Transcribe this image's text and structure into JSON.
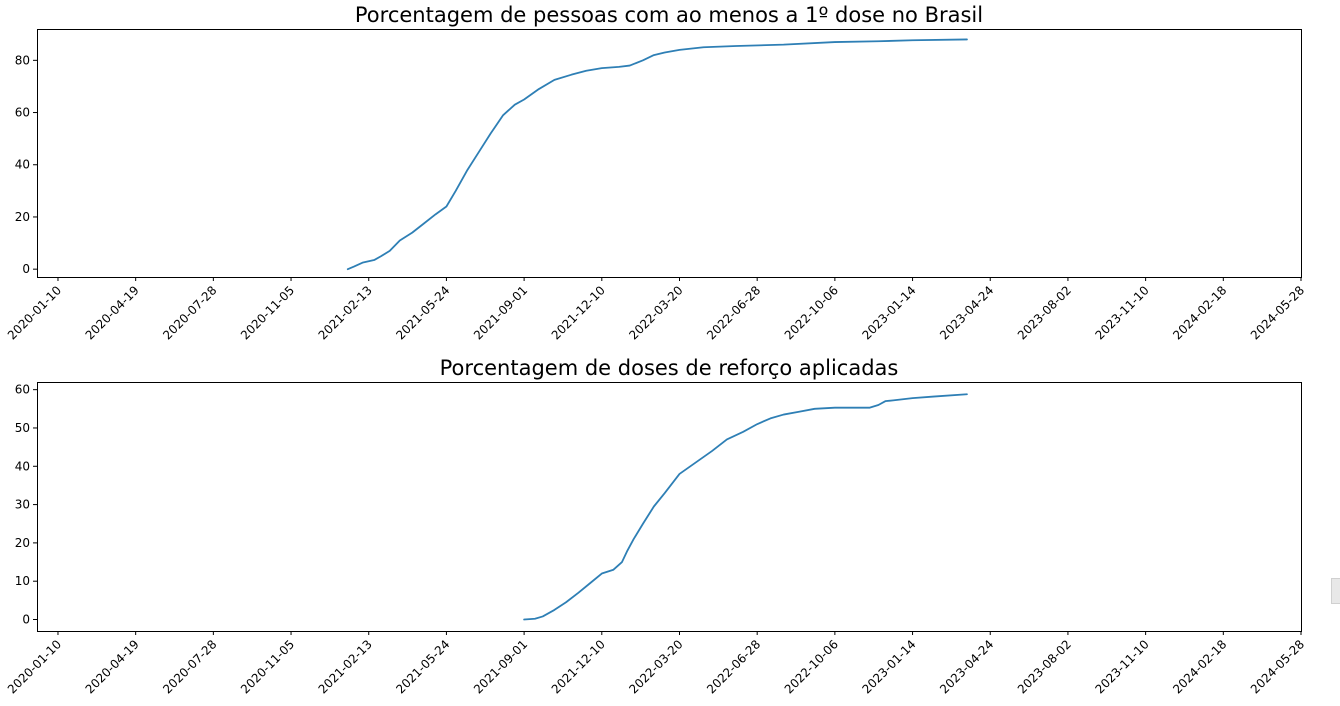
{
  "colors": {
    "series": "#2e7fb5"
  },
  "chart_data": [
    {
      "type": "line",
      "title": "Porcentagem de pessoas com ao menos a 1º dose no Brasil",
      "xlabel": "",
      "ylabel": "",
      "xlim": [
        "2019-12-14",
        "2024-05-28"
      ],
      "ylim": [
        -3,
        92
      ],
      "yticks": [
        0,
        20,
        40,
        60,
        80
      ],
      "xticks": [
        "2020-01-10",
        "2020-04-19",
        "2020-07-28",
        "2020-11-05",
        "2021-02-13",
        "2021-05-24",
        "2021-09-01",
        "2021-12-10",
        "2022-03-20",
        "2022-06-28",
        "2022-10-06",
        "2023-01-14",
        "2023-04-24",
        "2023-08-02",
        "2023-11-10",
        "2024-02-18",
        "2024-05-28"
      ],
      "grid": false,
      "series": [
        {
          "x": [
            "2021-01-17",
            "2021-01-25",
            "2021-02-05",
            "2021-02-20",
            "2021-03-01",
            "2021-03-12",
            "2021-03-25",
            "2021-04-10",
            "2021-04-25",
            "2021-05-10",
            "2021-05-24",
            "2021-06-05",
            "2021-06-20",
            "2021-07-05",
            "2021-07-20",
            "2021-08-05",
            "2021-08-20",
            "2021-09-01",
            "2021-09-20",
            "2021-10-10",
            "2021-11-01",
            "2021-11-20",
            "2021-12-10",
            "2022-01-01",
            "2022-01-15",
            "2022-02-01",
            "2022-02-15",
            "2022-03-01",
            "2022-03-20",
            "2022-04-20",
            "2022-06-01",
            "2022-08-01",
            "2022-10-06",
            "2022-12-01",
            "2023-01-14",
            "2023-03-25"
          ],
          "y": [
            0,
            1,
            2.5,
            3.5,
            5,
            7,
            11,
            14,
            17.5,
            21,
            24,
            30,
            38,
            45,
            52,
            59,
            63,
            65,
            69,
            72.5,
            74.5,
            76,
            77,
            77.5,
            78,
            80,
            82,
            83,
            84,
            85,
            85.5,
            86,
            87,
            87.3,
            87.7,
            88
          ]
        }
      ]
    },
    {
      "type": "line",
      "title": "Porcentagem de doses de reforço aplicadas",
      "xlabel": "",
      "ylabel": "",
      "xlim": [
        "2019-12-14",
        "2024-05-28"
      ],
      "ylim": [
        -3,
        62
      ],
      "yticks": [
        0,
        10,
        20,
        30,
        40,
        50,
        60
      ],
      "xticks": [
        "2020-01-10",
        "2020-04-19",
        "2020-07-28",
        "2020-11-05",
        "2021-02-13",
        "2021-05-24",
        "2021-09-01",
        "2021-12-10",
        "2022-03-20",
        "2022-06-28",
        "2022-10-06",
        "2023-01-14",
        "2023-04-24",
        "2023-08-02",
        "2023-11-10",
        "2024-02-18",
        "2024-05-28"
      ],
      "grid": false,
      "series": [
        {
          "x": [
            "2021-09-01",
            "2021-09-15",
            "2021-09-25",
            "2021-10-10",
            "2021-10-25",
            "2021-11-10",
            "2021-11-25",
            "2021-12-10",
            "2021-12-25",
            "2022-01-05",
            "2022-01-12",
            "2022-01-20",
            "2022-02-01",
            "2022-02-15",
            "2022-03-01",
            "2022-03-20",
            "2022-04-10",
            "2022-05-01",
            "2022-05-20",
            "2022-06-10",
            "2022-06-28",
            "2022-07-15",
            "2022-08-01",
            "2022-08-20",
            "2022-09-10",
            "2022-10-06",
            "2022-11-01",
            "2022-11-20",
            "2022-12-01",
            "2022-12-10",
            "2022-12-20",
            "2023-01-14",
            "2023-02-10",
            "2023-03-25"
          ],
          "y": [
            0,
            0.2,
            0.8,
            2.5,
            4.5,
            7,
            9.5,
            12,
            13,
            15,
            18,
            21,
            25,
            29.5,
            33,
            38,
            41,
            44,
            47,
            49,
            51,
            52.5,
            53.5,
            54.2,
            55,
            55.3,
            55.3,
            55.3,
            56,
            57,
            57.2,
            57.8,
            58.2,
            58.8
          ]
        }
      ]
    }
  ]
}
